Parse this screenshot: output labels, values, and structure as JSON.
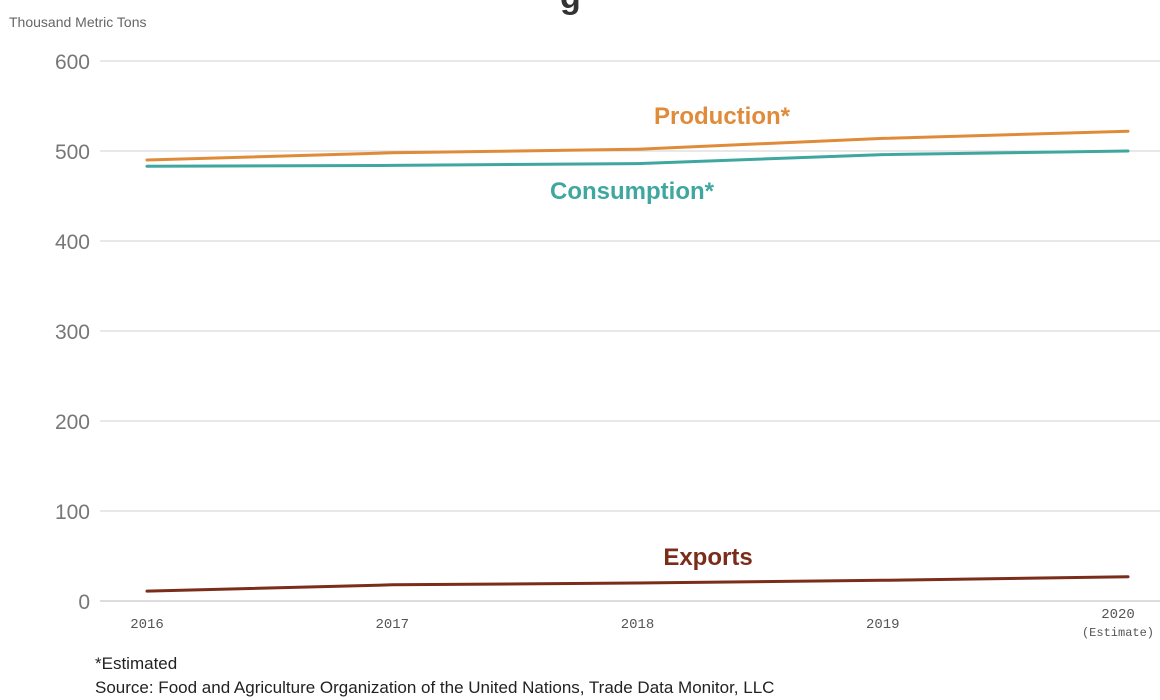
{
  "title_fragment": "g",
  "unit_label": "Thousand Metric Tons",
  "footnote": "*Estimated",
  "source": "Source: Food and Agriculture Organization of the United Nations, Trade Data Monitor, LLC",
  "colors": {
    "production": "#E08B3A",
    "consumption": "#3FA7A0",
    "exports": "#7B2D1A",
    "grid": "#D0D0D0",
    "axis_text": "#777777"
  },
  "chart_data": {
    "type": "line",
    "x": [
      2016,
      2017,
      2018,
      2019,
      2020
    ],
    "x_tick_labels": [
      "2016",
      "2017",
      "2018",
      "2019",
      "2020"
    ],
    "x_tick_sublabels": [
      "",
      "",
      "",
      "",
      "(Estimate)"
    ],
    "ylim": [
      0,
      600
    ],
    "y_ticks": [
      0,
      100,
      200,
      300,
      400,
      500,
      600
    ],
    "grid": true,
    "series": [
      {
        "name": "Production*",
        "color_key": "production",
        "values": [
          490,
          498,
          502,
          514,
          522
        ]
      },
      {
        "name": "Consumption*",
        "color_key": "consumption",
        "values": [
          483,
          484,
          486,
          496,
          500
        ]
      },
      {
        "name": "Exports",
        "color_key": "exports",
        "values": [
          11,
          18,
          20,
          23,
          27
        ]
      }
    ]
  }
}
